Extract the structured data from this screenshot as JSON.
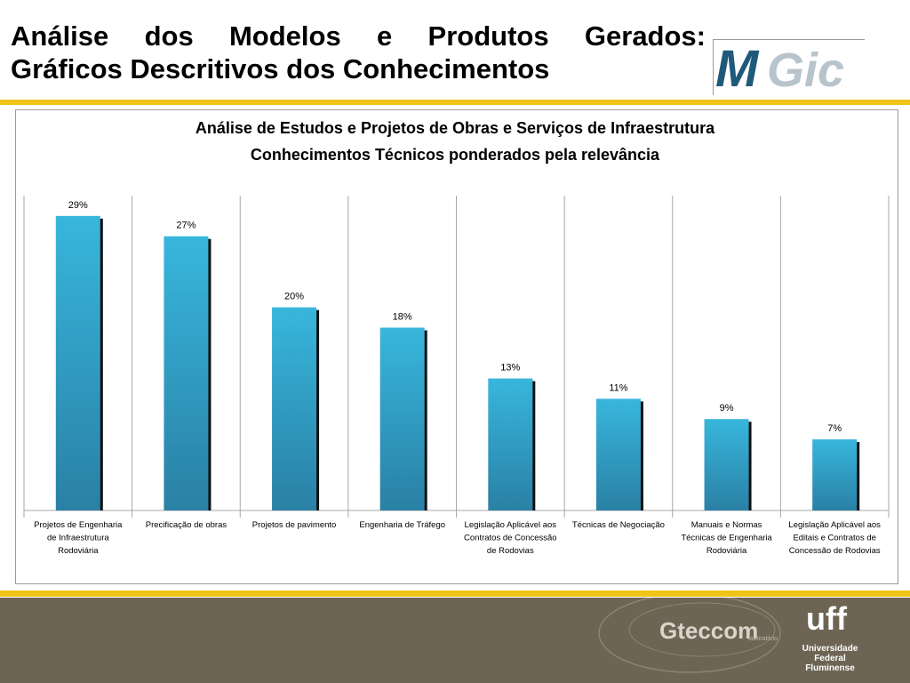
{
  "slide": {
    "title_line1": "Análise dos Modelos e Produtos Gerados:",
    "title_line2": "Gráficos Descritivos dos Conhecimentos"
  },
  "logo": {
    "letters": [
      "M",
      "Gic"
    ],
    "colors": {
      "m": "#1f5a7a",
      "gic": "#b8c4cc"
    }
  },
  "colors": {
    "gold": "#f0c419",
    "footer": "#6d6453",
    "bar_top": "#38b6dc",
    "bar_bottom": "#2a80a5",
    "bar_shadow": "#111111",
    "frame": "#9a9a9a",
    "grid": "#a8a8a8"
  },
  "chart_data": {
    "type": "bar",
    "title_line1": "Análise de Estudos e Projetos de Obras e Serviços de Infraestrutura",
    "title_line2": "Conhecimentos Técnicos ponderados pela relevância",
    "categories": [
      [
        "Projetos de Engenharia",
        "de Infraestrutura",
        "Rodoviária"
      ],
      [
        "Precificação de obras"
      ],
      [
        "Projetos de pavimento"
      ],
      [
        "Engenharia de Tráfego"
      ],
      [
        "Legislação Aplicável aos",
        "Contratos de Concessão",
        "de Rodovias"
      ],
      [
        "Técnicas de Negociação"
      ],
      [
        "Manuais e Normas",
        "Técnicas de Engenharia",
        "Rodoviária"
      ],
      [
        "Legislação Aplicável aos",
        "Editais e Contratos de",
        "Concessão de Rodovias"
      ]
    ],
    "values": [
      29,
      27,
      20,
      18,
      13,
      11,
      9,
      7
    ],
    "value_labels": [
      "29%",
      "27%",
      "20%",
      "18%",
      "13%",
      "11%",
      "9%",
      "7%"
    ],
    "ylim": [
      0,
      31
    ],
    "grid": "vertical category separators",
    "legend": "none"
  },
  "footer": {
    "gteccom_main": "Gteccom",
    "gteccom_sub": "laboratório",
    "uff_mark": "uff",
    "university_lines": [
      "Universidade",
      "Federal",
      "Fluminense"
    ]
  }
}
